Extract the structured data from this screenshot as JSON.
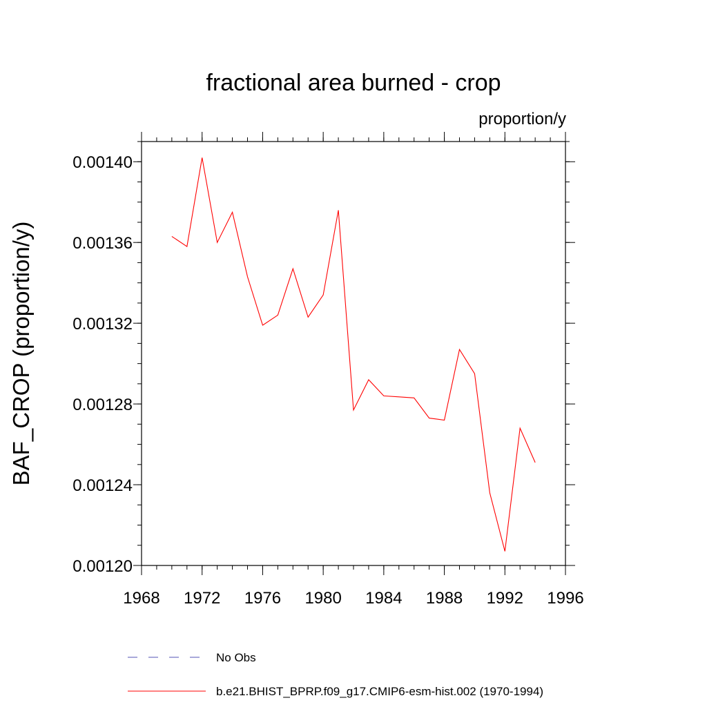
{
  "chart_data": {
    "type": "line",
    "title": "fractional area burned - crop",
    "units": "proportion/y",
    "ylabel": "BAF_CROP  (proportion/y)",
    "xlabel": "",
    "xlim": [
      1968,
      1996
    ],
    "ylim": [
      0.0012,
      0.00141
    ],
    "x_ticks": [
      1968,
      1972,
      1976,
      1980,
      1984,
      1988,
      1992,
      1996
    ],
    "x_tick_labels": [
      "1968",
      "1972",
      "1976",
      "1980",
      "1984",
      "1988",
      "1992",
      "1996"
    ],
    "x_minor_step": 1,
    "y_ticks": [
      0.0012,
      0.00124,
      0.00128,
      0.00132,
      0.00136,
      0.0014
    ],
    "y_tick_labels": [
      "0.00120",
      "0.00124",
      "0.00128",
      "0.00132",
      "0.00136",
      "0.00140"
    ],
    "y_minor_step": 1e-05,
    "grid": false,
    "legend_position": "bottom",
    "series": [
      {
        "name": "No Obs",
        "color": "#5050b4",
        "dash": "dashed",
        "x": [],
        "y": []
      },
      {
        "name": "b.e21.BHIST_BPRP.f09_g17.CMIP6-esm-hist.002 (1970-1994)",
        "color": "#ff0000",
        "dash": "solid",
        "x": [
          1970,
          1971,
          1972,
          1973,
          1974,
          1975,
          1976,
          1977,
          1978,
          1979,
          1980,
          1981,
          1982,
          1983,
          1984,
          1985,
          1986,
          1987,
          1988,
          1989,
          1990,
          1991,
          1992,
          1993,
          1994
        ],
        "y": [
          0.001363,
          0.001358,
          0.001402,
          0.00136,
          0.001375,
          0.001343,
          0.001319,
          0.001324,
          0.001347,
          0.001323,
          0.001334,
          0.001376,
          0.001277,
          0.001292,
          0.001284,
          0.0012835,
          0.001283,
          0.001273,
          0.001272,
          0.001307,
          0.001295,
          0.001236,
          0.001207,
          0.001268,
          0.001251
        ]
      }
    ]
  }
}
